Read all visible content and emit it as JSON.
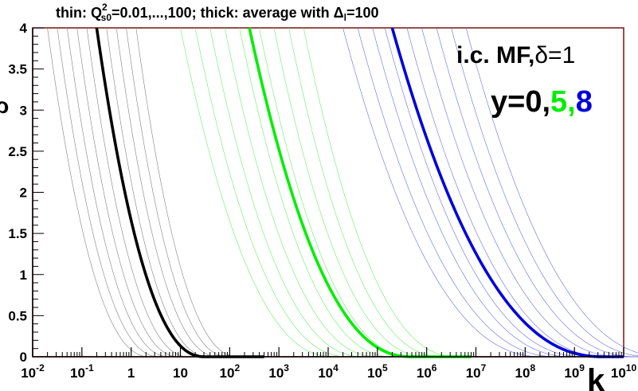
{
  "chart_data": {
    "type": "line",
    "title_parts": {
      "prefix": "thin: Q",
      "sup": "2",
      "sub": "s0",
      "middle": "=0.01,...,100; thick: average with ",
      "delta": "Δ",
      "delta_sub": "l",
      "suffix": "=100"
    },
    "ylabel": "ρ",
    "xlabel": "k",
    "xscale": "log",
    "xlim_exp": [
      -2,
      10
    ],
    "ylim": [
      0,
      4
    ],
    "x_tick_labels": [
      {
        "base": "10",
        "exp": "-2"
      },
      {
        "base": "10",
        "exp": "-1"
      },
      {
        "base": "1",
        "exp": ""
      },
      {
        "base": "10",
        "exp": ""
      },
      {
        "base": "10",
        "exp": "2"
      },
      {
        "base": "10",
        "exp": "3"
      },
      {
        "base": "10",
        "exp": "4"
      },
      {
        "base": "10",
        "exp": "5"
      },
      {
        "base": "10",
        "exp": "6"
      },
      {
        "base": "10",
        "exp": "7"
      },
      {
        "base": "10",
        "exp": "8"
      },
      {
        "base": "10",
        "exp": "9"
      },
      {
        "base": "10",
        "exp": "10"
      }
    ],
    "y_ticks": [
      "0",
      "0.5",
      "1",
      "1.5",
      "2",
      "2.5",
      "3",
      "3.5",
      "4"
    ],
    "annotation_ic": "i.c. MF,",
    "annotation_delta": "δ=1",
    "annotation_y_prefix": "y=0,",
    "annotation_y5": "5,",
    "annotation_y8": "8",
    "groups": [
      {
        "name": "y=0",
        "color": "#000000",
        "thin_color": "#808080",
        "thick": {
          "log10_k_at_rho4": -0.7,
          "log10_k_at_rho0": 1.5
        },
        "thin_log10_k_at_rho4": [
          -1.7,
          -1.5,
          -1.3,
          -1.1,
          -0.9,
          -0.5,
          -0.3,
          -0.1,
          0.1
        ]
      },
      {
        "name": "y=5",
        "color": "#00ee00",
        "thin_color": "#66ee66",
        "thick": {
          "log10_k_at_rho4": 2.4,
          "log10_k_at_rho0": 5.7
        },
        "thin_log10_k_at_rho4": [
          1.0,
          1.3,
          1.6,
          1.9,
          2.2,
          2.6,
          2.9,
          3.2,
          3.5
        ]
      },
      {
        "name": "y=8",
        "color": "#0000dd",
        "thin_color": "#6a6ae6",
        "thick": {
          "log10_k_at_rho4": 5.3,
          "log10_k_at_rho0": 9.6
        },
        "thin_log10_k_at_rho4": [
          4.3,
          4.6,
          4.9,
          5.15,
          5.6,
          5.9,
          6.2,
          6.5,
          6.8
        ]
      }
    ]
  }
}
